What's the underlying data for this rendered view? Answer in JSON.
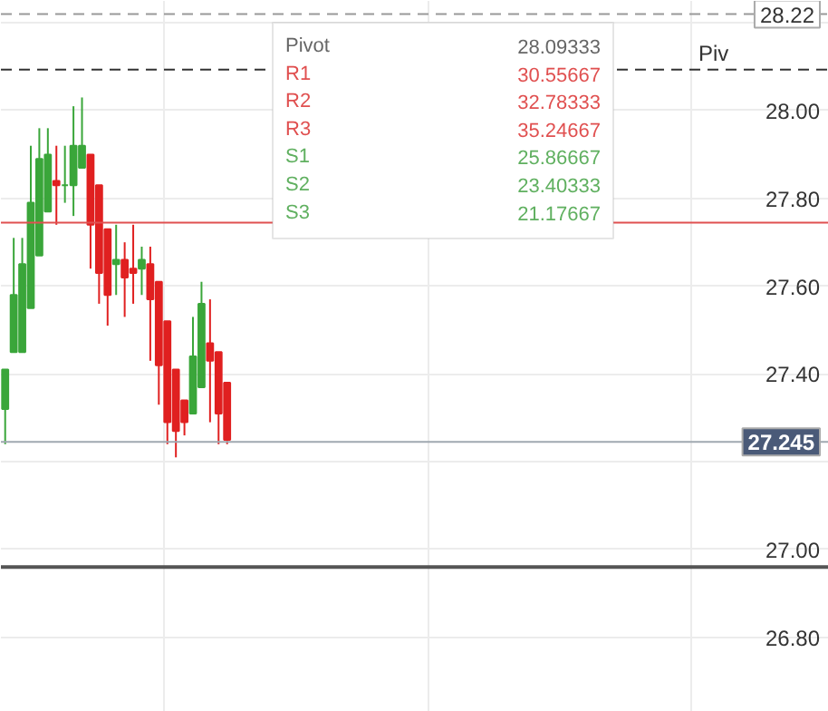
{
  "chart_data": {
    "type": "candlestick",
    "categories": [
      null,
      null,
      null,
      null,
      null,
      null,
      null,
      null,
      null,
      null,
      null,
      null,
      null,
      null,
      null,
      null,
      null,
      null,
      null,
      null,
      null,
      null,
      null,
      null,
      null,
      null,
      null,
      null,
      null,
      null,
      null,
      null,
      null,
      null,
      null,
      null,
      null,
      null,
      null,
      null,
      null,
      null,
      null,
      null,
      null,
      null,
      null,
      null,
      null,
      null,
      null,
      null,
      null,
      null,
      null,
      null,
      null,
      null,
      null,
      null,
      null,
      null,
      null,
      null,
      null,
      null,
      null,
      null,
      null,
      null,
      null,
      null,
      null,
      null,
      null,
      null,
      null,
      null,
      null,
      null,
      null,
      null,
      null,
      null,
      null,
      null,
      null,
      null,
      null,
      null,
      null,
      null,
      null,
      null,
      null,
      null,
      null
    ],
    "ohlc": [
      [
        27.32,
        27.41,
        27.24,
        27.41
      ],
      [
        27.45,
        27.71,
        27.45,
        27.58
      ],
      [
        27.45,
        27.71,
        27.45,
        27.65
      ],
      [
        27.55,
        27.92,
        27.55,
        27.79
      ],
      [
        27.67,
        27.96,
        27.67,
        27.89
      ],
      [
        27.77,
        27.96,
        27.77,
        27.9
      ],
      [
        27.84,
        27.92,
        27.74,
        27.83
      ],
      [
        27.83,
        27.92,
        27.79,
        27.83
      ],
      [
        27.83,
        28.01,
        27.76,
        27.92
      ],
      [
        27.87,
        28.03,
        27.87,
        27.92
      ],
      [
        27.9,
        27.9,
        27.64,
        27.74
      ],
      [
        27.83,
        27.83,
        27.56,
        27.63
      ],
      [
        27.73,
        27.73,
        27.51,
        27.58
      ],
      [
        27.65,
        27.74,
        27.58,
        27.66
      ],
      [
        27.66,
        27.7,
        27.53,
        27.62
      ],
      [
        27.64,
        27.74,
        27.56,
        27.63
      ],
      [
        27.64,
        27.69,
        27.58,
        27.66
      ],
      [
        27.65,
        27.69,
        27.43,
        27.57
      ],
      [
        27.61,
        27.61,
        27.33,
        27.42
      ],
      [
        27.52,
        27.52,
        27.24,
        27.29
      ],
      [
        27.41,
        27.41,
        27.21,
        27.27
      ],
      [
        27.34,
        27.34,
        27.26,
        27.29
      ],
      [
        27.31,
        27.53,
        27.31,
        27.44
      ],
      [
        27.37,
        27.61,
        27.37,
        27.56
      ],
      [
        27.47,
        27.57,
        27.29,
        27.43
      ],
      [
        27.45,
        27.45,
        27.24,
        27.31
      ],
      [
        27.38,
        27.38,
        27.24,
        27.25
      ],
      null,
      null,
      null,
      null,
      null,
      null,
      null,
      null,
      null,
      null,
      null,
      null,
      null,
      null,
      null,
      null,
      null,
      null,
      null,
      null,
      null,
      null,
      null,
      null,
      null,
      null,
      null,
      null,
      null,
      null,
      null,
      null,
      null,
      null,
      null,
      null,
      null,
      null,
      null,
      null,
      null,
      null,
      null,
      null,
      null,
      null,
      null,
      null,
      null,
      null,
      null,
      null,
      null,
      null,
      null,
      null,
      null,
      null,
      null,
      null,
      null,
      null,
      null,
      null,
      null,
      null,
      null,
      null,
      null,
      null
    ],
    "ylim": [
      26.63,
      28.25
    ],
    "yticks": [
      {
        "value": 26.8,
        "label": "26.80"
      },
      {
        "value": 27.0,
        "label": "27.00"
      },
      {
        "value": 27.2,
        "label": null
      },
      {
        "value": 27.4,
        "label": "27.40"
      },
      {
        "value": 27.6,
        "label": "27.60"
      },
      {
        "value": 27.8,
        "label": "27.80"
      },
      {
        "value": 28.0,
        "label": "28.00"
      },
      {
        "value": 28.2,
        "label": null
      }
    ],
    "grid": true,
    "ref_lines": [
      {
        "axis": "y",
        "value": 28.22,
        "label": "28.22",
        "color": "#999999",
        "line_style": "dashed"
      },
      {
        "axis": "y",
        "value": 28.09333,
        "label": "Piv",
        "color": "#333333",
        "line_style": "dashed"
      },
      {
        "axis": "y",
        "value": 27.745,
        "label": null,
        "color": "#e05050",
        "line_style": "solid"
      },
      {
        "axis": "y",
        "value": 27.245,
        "label": "27.245",
        "color": "#a0a8b0",
        "line_style": "solid"
      },
      {
        "axis": "y",
        "value": 26.96,
        "label": null,
        "color": "#555555",
        "line_style": "solid"
      }
    ],
    "annotations": [
      "Pivot",
      "28.09333",
      "R1",
      "30.55667",
      "R2",
      "32.78333",
      "R3",
      "35.24667",
      "S1",
      "25.86667",
      "S2",
      "23.40333",
      "S3",
      "21.17667"
    ]
  }
}
